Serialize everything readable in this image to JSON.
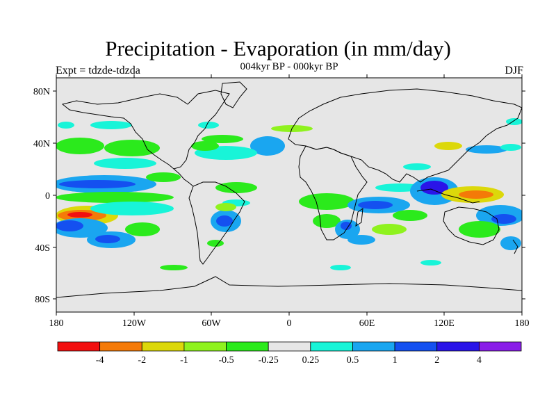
{
  "title": "Precipitation - Evaporation (in mm/day)",
  "subtitle": "004kyr BP - 000kyr BP",
  "left_label": "Expt = tdzde-tdzda",
  "right_label": "DJF",
  "lat_ticks": [
    "80N",
    "40N",
    "0",
    "40S",
    "80S"
  ],
  "lon_ticks": [
    "180",
    "120W",
    "60W",
    "0",
    "60E",
    "120E",
    "180"
  ],
  "colorbar": {
    "colors": [
      "#f21010",
      "#f47a08",
      "#dcd80a",
      "#8ff21e",
      "#2bea1c",
      "#e6e6e6",
      "#18f4d8",
      "#1aa6f0",
      "#1450f0",
      "#2a14e8",
      "#8a1ee8"
    ],
    "labels": [
      "-4",
      "-2",
      "-1",
      "-0.5",
      "-0.25",
      "0.25",
      "0.5",
      "1",
      "2",
      "4"
    ]
  },
  "colors": {
    "ocean_background": "#e6e6e6",
    "coastline": "#000000"
  }
}
